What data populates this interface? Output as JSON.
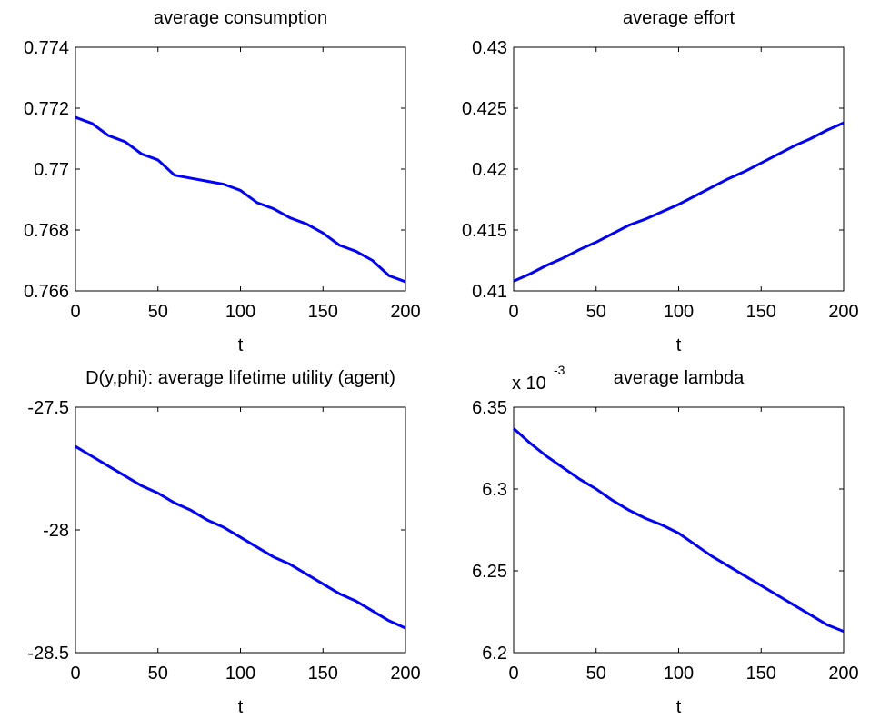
{
  "chart_data": [
    {
      "type": "line",
      "title": "average consumption",
      "xlabel": "t",
      "x": [
        0,
        10,
        20,
        30,
        40,
        50,
        60,
        70,
        80,
        90,
        100,
        110,
        120,
        130,
        140,
        150,
        160,
        170,
        180,
        190,
        200
      ],
      "values": [
        0.7717,
        0.7715,
        0.7711,
        0.7709,
        0.7705,
        0.7703,
        0.7698,
        0.7697,
        0.7696,
        0.7695,
        0.7693,
        0.7689,
        0.7687,
        0.7684,
        0.7682,
        0.7679,
        0.7675,
        0.7673,
        0.767,
        0.7665,
        0.7663
      ],
      "color": "#0000ff",
      "xlim": [
        0,
        200
      ],
      "xticks": [
        0,
        50,
        100,
        150,
        200
      ],
      "ylim": [
        0.766,
        0.774
      ],
      "yticks": [
        0.766,
        0.768,
        0.77,
        0.772,
        0.774
      ]
    },
    {
      "type": "line",
      "title": "average effort",
      "xlabel": "t",
      "x": [
        0,
        10,
        20,
        30,
        40,
        50,
        60,
        70,
        80,
        90,
        100,
        110,
        120,
        130,
        140,
        150,
        160,
        170,
        180,
        190,
        200
      ],
      "values": [
        0.4108,
        0.4114,
        0.4121,
        0.4127,
        0.4134,
        0.414,
        0.4147,
        0.4154,
        0.4159,
        0.4165,
        0.4171,
        0.4178,
        0.4185,
        0.4192,
        0.4198,
        0.4205,
        0.4212,
        0.4219,
        0.4225,
        0.4232,
        0.4238
      ],
      "color": "#0000ff",
      "xlim": [
        0,
        200
      ],
      "xticks": [
        0,
        50,
        100,
        150,
        200
      ],
      "ylim": [
        0.41,
        0.43
      ],
      "yticks": [
        0.41,
        0.415,
        0.42,
        0.425,
        0.43
      ]
    },
    {
      "type": "line",
      "title": "D(y,phi): average lifetime utility (agent)",
      "xlabel": "t",
      "x": [
        0,
        10,
        20,
        30,
        40,
        50,
        60,
        70,
        80,
        90,
        100,
        110,
        120,
        130,
        140,
        150,
        160,
        170,
        180,
        190,
        200
      ],
      "values": [
        -27.66,
        -27.7,
        -27.74,
        -27.78,
        -27.82,
        -27.85,
        -27.89,
        -27.92,
        -27.96,
        -27.99,
        -28.03,
        -28.07,
        -28.11,
        -28.14,
        -28.18,
        -28.22,
        -28.26,
        -28.29,
        -28.33,
        -28.37,
        -28.4
      ],
      "color": "#0000ff",
      "xlim": [
        0,
        200
      ],
      "xticks": [
        0,
        50,
        100,
        150,
        200
      ],
      "ylim": [
        -28.5,
        -27.5
      ],
      "yticks": [
        -28.5,
        -28,
        -27.5
      ]
    },
    {
      "type": "line",
      "title": "average lambda",
      "xlabel": "t",
      "y_multiplier": "x 10",
      "y_multiplier_exponent": "-3",
      "x": [
        0,
        10,
        20,
        30,
        40,
        50,
        60,
        70,
        80,
        90,
        100,
        110,
        120,
        130,
        140,
        150,
        160,
        170,
        180,
        190,
        200
      ],
      "values": [
        6.337,
        6.328,
        6.32,
        6.313,
        6.306,
        6.3,
        6.293,
        6.287,
        6.282,
        6.278,
        6.273,
        6.266,
        6.259,
        6.253,
        6.247,
        6.241,
        6.235,
        6.229,
        6.223,
        6.217,
        6.213
      ],
      "color": "#0000ff",
      "xlim": [
        0,
        200
      ],
      "xticks": [
        0,
        50,
        100,
        150,
        200
      ],
      "ylim": [
        6.2,
        6.35
      ],
      "yticks": [
        6.2,
        6.25,
        6.3,
        6.35
      ]
    }
  ]
}
